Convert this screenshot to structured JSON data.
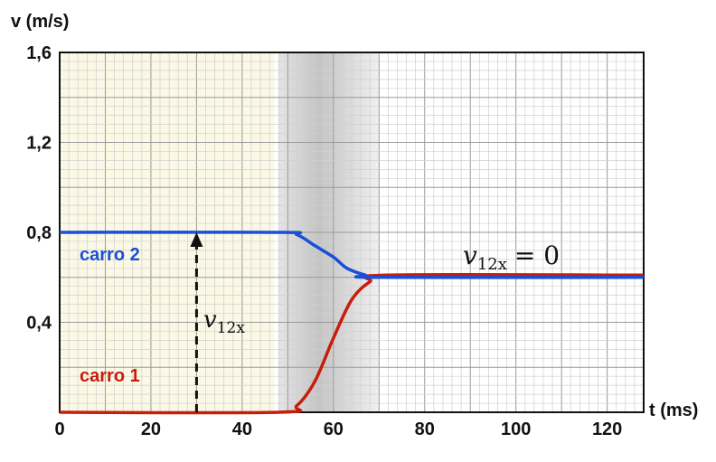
{
  "chart_data": {
    "type": "line",
    "xlabel": "t (ms)",
    "ylabel": "v (m/s)",
    "xlim": [
      0,
      128
    ],
    "ylim": [
      0,
      1.6
    ],
    "x_ticks": [
      "0",
      "20",
      "40",
      "60",
      "80",
      "100",
      "120"
    ],
    "x_tick_values": [
      0,
      20,
      40,
      60,
      80,
      100,
      120
    ],
    "y_ticks": [
      "1,6",
      "1,2",
      "0,8",
      "0,4"
    ],
    "y_tick_values": [
      1.6,
      1.2,
      0.8,
      0.4
    ],
    "grid": true,
    "shaded_regions": [
      {
        "from": 0,
        "to": 47,
        "color": "#fbf8e6"
      },
      {
        "from": 48,
        "to": 70,
        "color": "#d6d6d6"
      }
    ],
    "series": [
      {
        "name": "carro 2",
        "color": "#1a4fd6",
        "points": [
          [
            0,
            0.8
          ],
          [
            48,
            0.8
          ],
          [
            52,
            0.79
          ],
          [
            56,
            0.74
          ],
          [
            60,
            0.69
          ],
          [
            63,
            0.64
          ],
          [
            67,
            0.61
          ],
          [
            70,
            0.6
          ],
          [
            128,
            0.6
          ]
        ]
      },
      {
        "name": "carro 1",
        "color": "#c61e0b",
        "points": [
          [
            0,
            0.0
          ],
          [
            48,
            0.0
          ],
          [
            52,
            0.03
          ],
          [
            56,
            0.14
          ],
          [
            60,
            0.33
          ],
          [
            64,
            0.5
          ],
          [
            68,
            0.58
          ],
          [
            72,
            0.61
          ],
          [
            128,
            0.61
          ]
        ]
      }
    ],
    "annotations": [
      {
        "kind": "arrow",
        "x": 30,
        "y_from": 0,
        "y_to": 0.8,
        "style": "dashed",
        "label": "v_{12x}"
      },
      {
        "kind": "text",
        "label": "v_{12x} = 0"
      }
    ]
  },
  "labels": {
    "series2": "carro 2",
    "series1": "carro 1",
    "vrel_sym": "v",
    "vrel_sub": "12x",
    "vzero_eq": "= 0"
  }
}
